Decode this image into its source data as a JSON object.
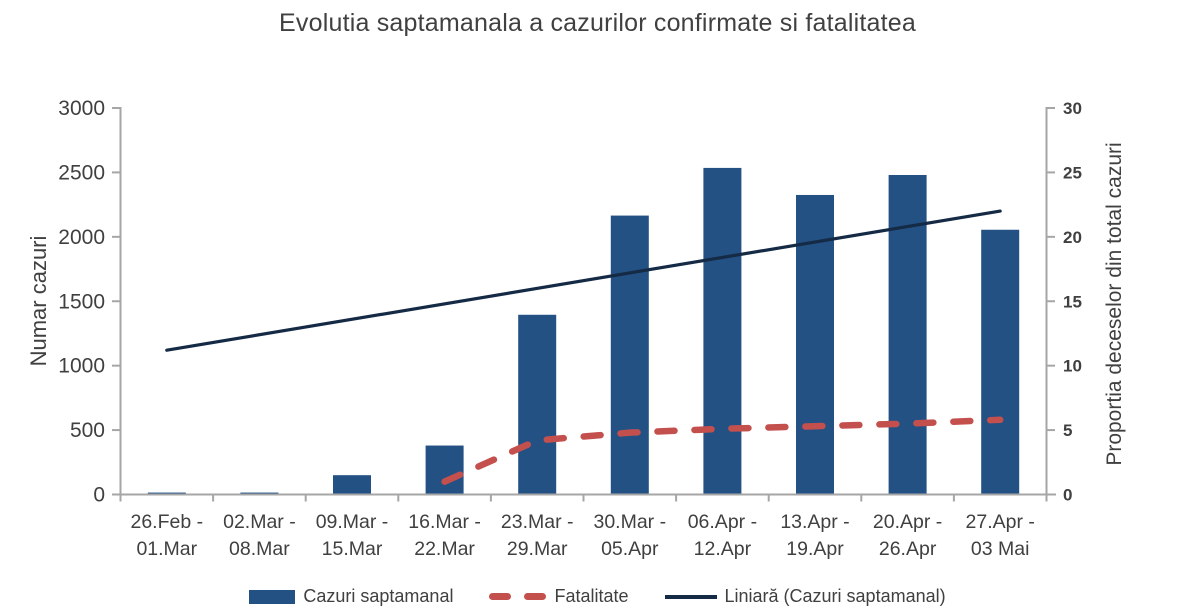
{
  "title": "Evolutia saptamanala a cazurilor confirmate si fatalitatea",
  "chart_data": {
    "type": "combo",
    "title": "Evolutia saptamanala a cazurilor confirmate si fatalitatea",
    "categories": [
      {
        "line1": "26.Feb -",
        "line2": "01.Mar"
      },
      {
        "line1": "02.Mar -",
        "line2": "08.Mar"
      },
      {
        "line1": "09.Mar -",
        "line2": "15.Mar"
      },
      {
        "line1": "16.Mar -",
        "line2": "22.Mar"
      },
      {
        "line1": "23.Mar -",
        "line2": "29.Mar"
      },
      {
        "line1": "30.Mar -",
        "line2": "05.Apr"
      },
      {
        "line1": "06.Apr -",
        "line2": "12.Apr"
      },
      {
        "line1": "13.Apr -",
        "line2": "19.Apr"
      },
      {
        "line1": "20.Apr -",
        "line2": "26.Apr"
      },
      {
        "line1": "27.Apr -",
        "line2": "03 Mai"
      }
    ],
    "series": [
      {
        "name": "Cazuri saptamanal",
        "type": "bar",
        "axis": "left",
        "color": "#235184",
        "values": [
          15,
          15,
          150,
          380,
          1395,
          2165,
          2535,
          2325,
          2480,
          2055
        ]
      },
      {
        "name": "Fatalitate",
        "type": "line",
        "dashed": true,
        "axis": "right",
        "color": "#C4504E",
        "values": [
          null,
          null,
          null,
          1.0,
          4.2,
          4.8,
          5.1,
          5.3,
          5.5,
          5.8
        ]
      },
      {
        "name": "Liniară (Cazuri saptamanal)",
        "type": "trendline",
        "axis": "left",
        "color": "#152A45",
        "endpoints": [
          1120,
          2200
        ]
      }
    ],
    "left_axis": {
      "title": "Numar cazuri",
      "min": 0,
      "max": 3000,
      "step": 500
    },
    "right_axis": {
      "title": "Proportia deceselor din total cazuri",
      "min": 0,
      "max": 30,
      "step": 5
    },
    "legend_position": "bottom",
    "grid": false
  },
  "colors": {
    "axis": "#A6A6A6",
    "text": "#404040"
  }
}
